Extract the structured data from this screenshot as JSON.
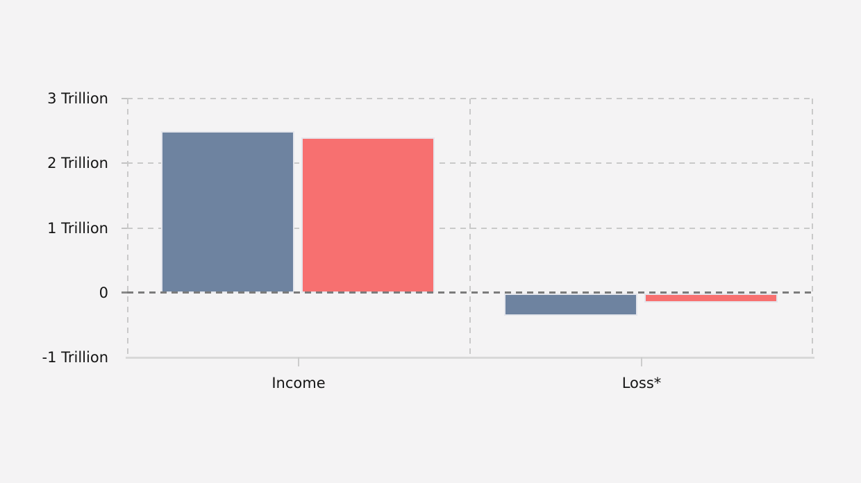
{
  "page": {
    "background_color": "#f4f3f4"
  },
  "chart_data": {
    "type": "bar",
    "categories": [
      "Income",
      "Loss*"
    ],
    "series": [
      {
        "name": "blue",
        "color": "#6E83A0",
        "values": [
          2.5,
          -0.35
        ]
      },
      {
        "name": "red",
        "color": "#F77070",
        "values": [
          2.4,
          -0.14
        ]
      }
    ],
    "unit": "Trillion",
    "ylim": [
      -1,
      3
    ],
    "y_ticks": [
      {
        "value": 3,
        "label": "3 Trillion"
      },
      {
        "value": 2,
        "label": "2 Trillion"
      },
      {
        "value": 1,
        "label": "1 Trillion"
      },
      {
        "value": 0,
        "label": "0"
      },
      {
        "value": -1,
        "label": "-1 Trillion"
      }
    ],
    "grid": true,
    "grid_style": "dashed",
    "legend": false,
    "styles": {
      "grid_color": "#c9c9c9",
      "zero_line_color": "#7b7b7b",
      "axis_color": "#d8d8d8",
      "bar_border_color": "#e5e6ec",
      "label_color": "#141414"
    }
  }
}
